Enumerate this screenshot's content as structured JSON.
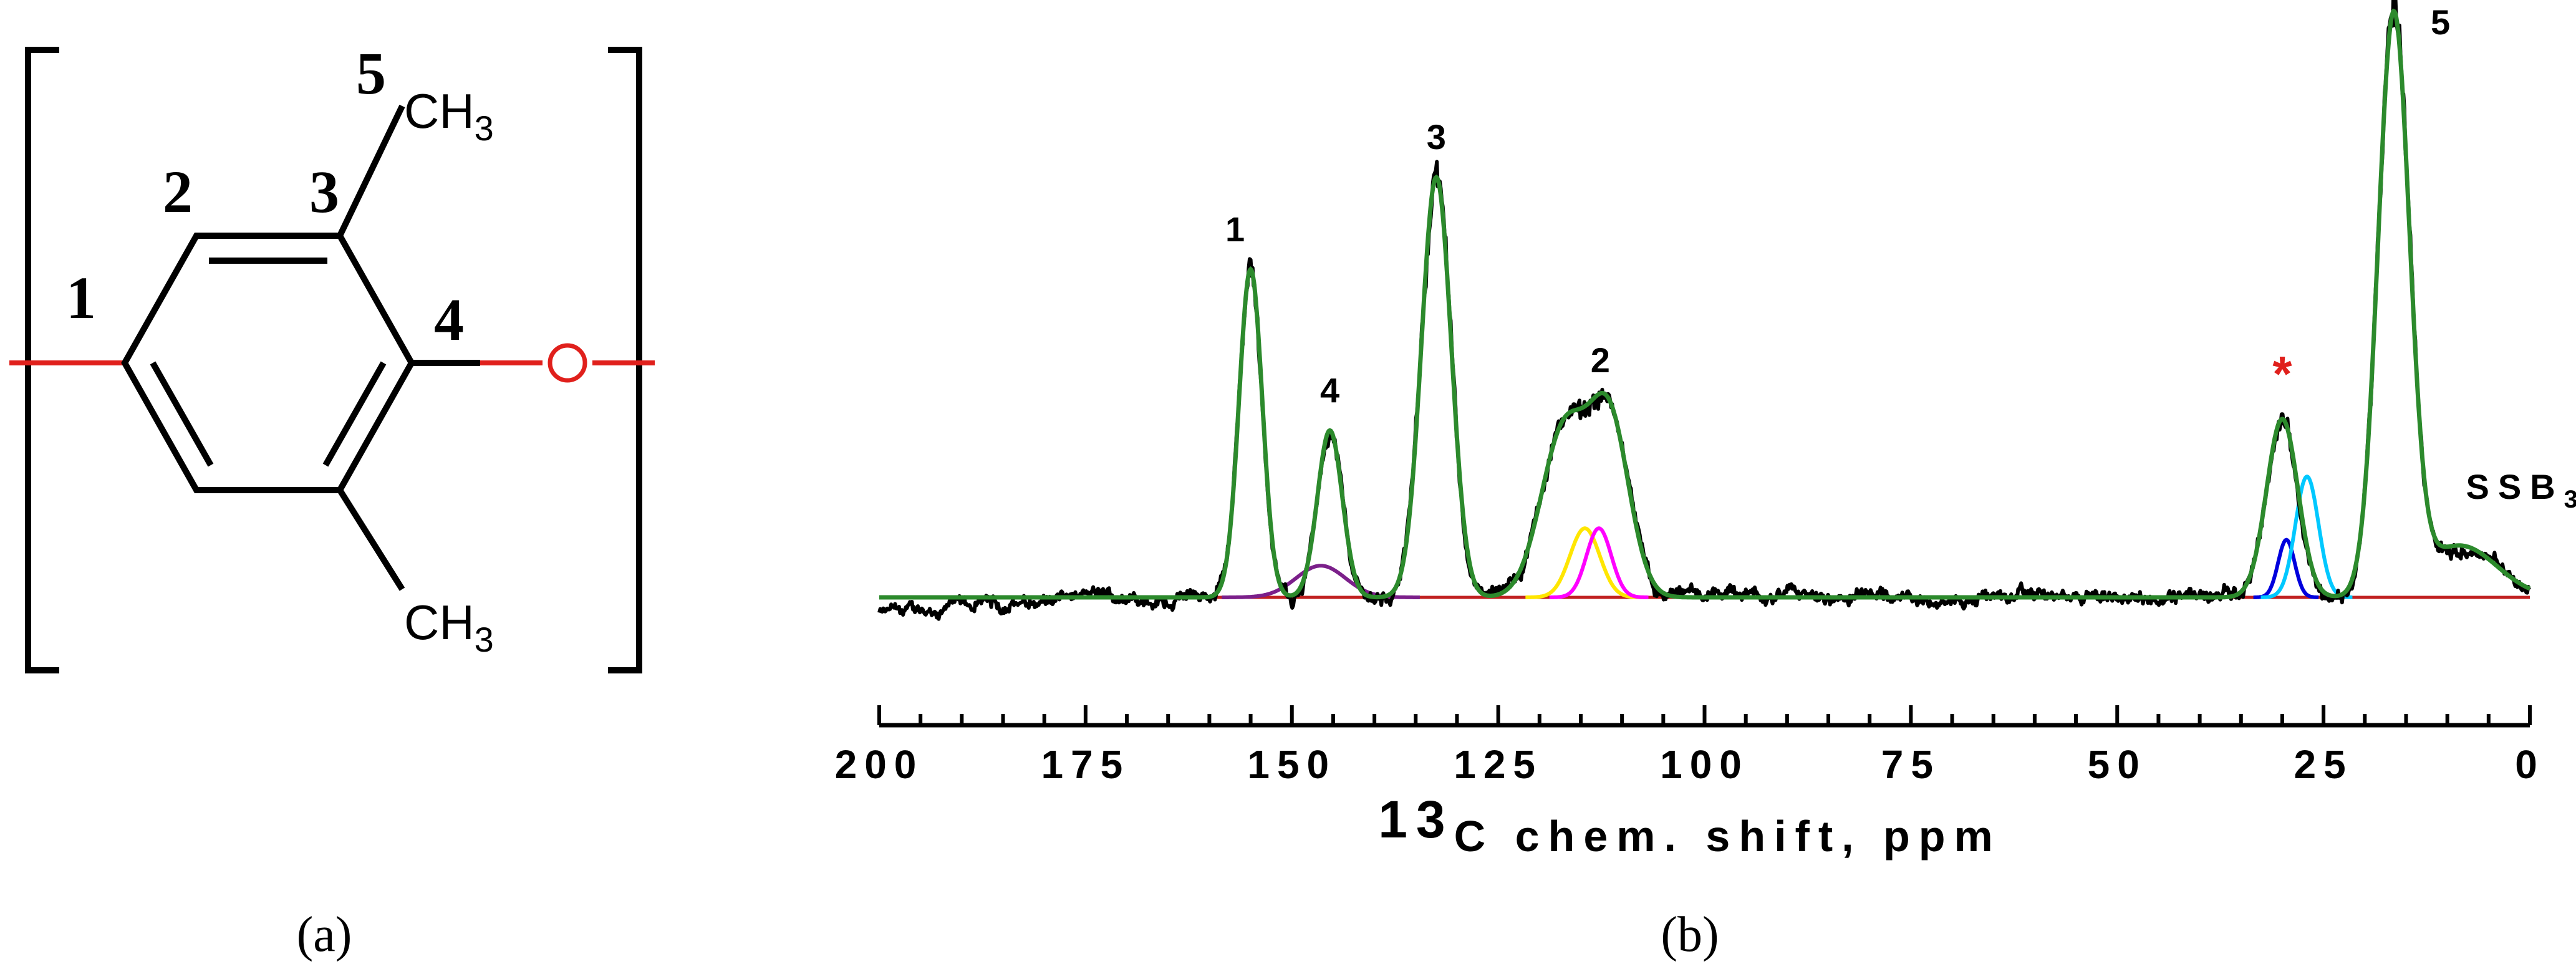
{
  "panel_a": {
    "caption": "(a)",
    "atom_labels": [
      "1",
      "2",
      "3",
      "4",
      "5"
    ],
    "substituent_top": {
      "base": "CH",
      "sub": "3"
    },
    "substituent_bottom": {
      "base": "CH",
      "sub": "3"
    },
    "oxygen": "O",
    "colors": {
      "bond": "#000000",
      "linkage": "#e0201c"
    }
  },
  "panel_b": {
    "caption": "(b)"
  },
  "chart_data": {
    "type": "line",
    "title": "",
    "xlabel_sup": "13",
    "xlabel_rest": "C chem. shift, ppm",
    "xlim": [
      200,
      0
    ],
    "x_reversed": true,
    "x_ticks": [
      200,
      175,
      150,
      125,
      100,
      75,
      50,
      25,
      0
    ],
    "x_minor_step": 5,
    "grid": false,
    "legend": "none",
    "peaks": [
      {
        "label": "1",
        "shift": 155.0,
        "relative_height": 0.57,
        "width": 1.4,
        "color": "#2c8a2c"
      },
      {
        "label": "4",
        "shift": 145.4,
        "relative_height": 0.29,
        "width": 1.5,
        "color": "#2c8a2c"
      },
      {
        "label": "",
        "shift": 146.5,
        "relative_height": 0.055,
        "width": 3.0,
        "color": "#7b1f8a"
      },
      {
        "label": "3",
        "shift": 132.5,
        "relative_height": 0.73,
        "width": 1.8,
        "color": "#2c8a2c"
      },
      {
        "label": "",
        "shift": 117.0,
        "relative_height": 0.29,
        "width": 2.8,
        "color": "#2c8a2c"
      },
      {
        "label": "",
        "shift": 114.5,
        "relative_height": 0.12,
        "width": 1.8,
        "color": "#ffe600"
      },
      {
        "label": "",
        "shift": 112.8,
        "relative_height": 0.12,
        "width": 1.5,
        "color": "#ff00ff"
      },
      {
        "label": "2",
        "shift": 111.5,
        "relative_height": 0.3,
        "width": 2.4,
        "color": "#2c8a2c"
      },
      {
        "label": "*",
        "shift": 30.0,
        "relative_height": 0.31,
        "width": 1.9,
        "color": "#2c8a2c"
      },
      {
        "label": "",
        "shift": 29.5,
        "relative_height": 0.1,
        "width": 1.0,
        "color": "#0000dd"
      },
      {
        "label": "",
        "shift": 27.0,
        "relative_height": 0.21,
        "width": 1.4,
        "color": "#00c8ff"
      },
      {
        "label": "5",
        "shift": 16.5,
        "relative_height": 1.0,
        "width": 1.9,
        "color": "#2c8a2c"
      },
      {
        "label": "SSB3",
        "shift": 8.5,
        "relative_height": 0.09,
        "width": 4.5,
        "color": "#2c8a2c"
      }
    ],
    "series": [
      {
        "name": "",
        "color": "#000000",
        "role": "experimental spectrum"
      },
      {
        "name": "",
        "color": "#2c8a2c",
        "role": "fitted envelope"
      },
      {
        "name": "",
        "color": "#c02020",
        "role": "baseline"
      }
    ],
    "annotation_colors": {
      "peak_label": "#000000",
      "asterisk": "#e0201c"
    }
  }
}
